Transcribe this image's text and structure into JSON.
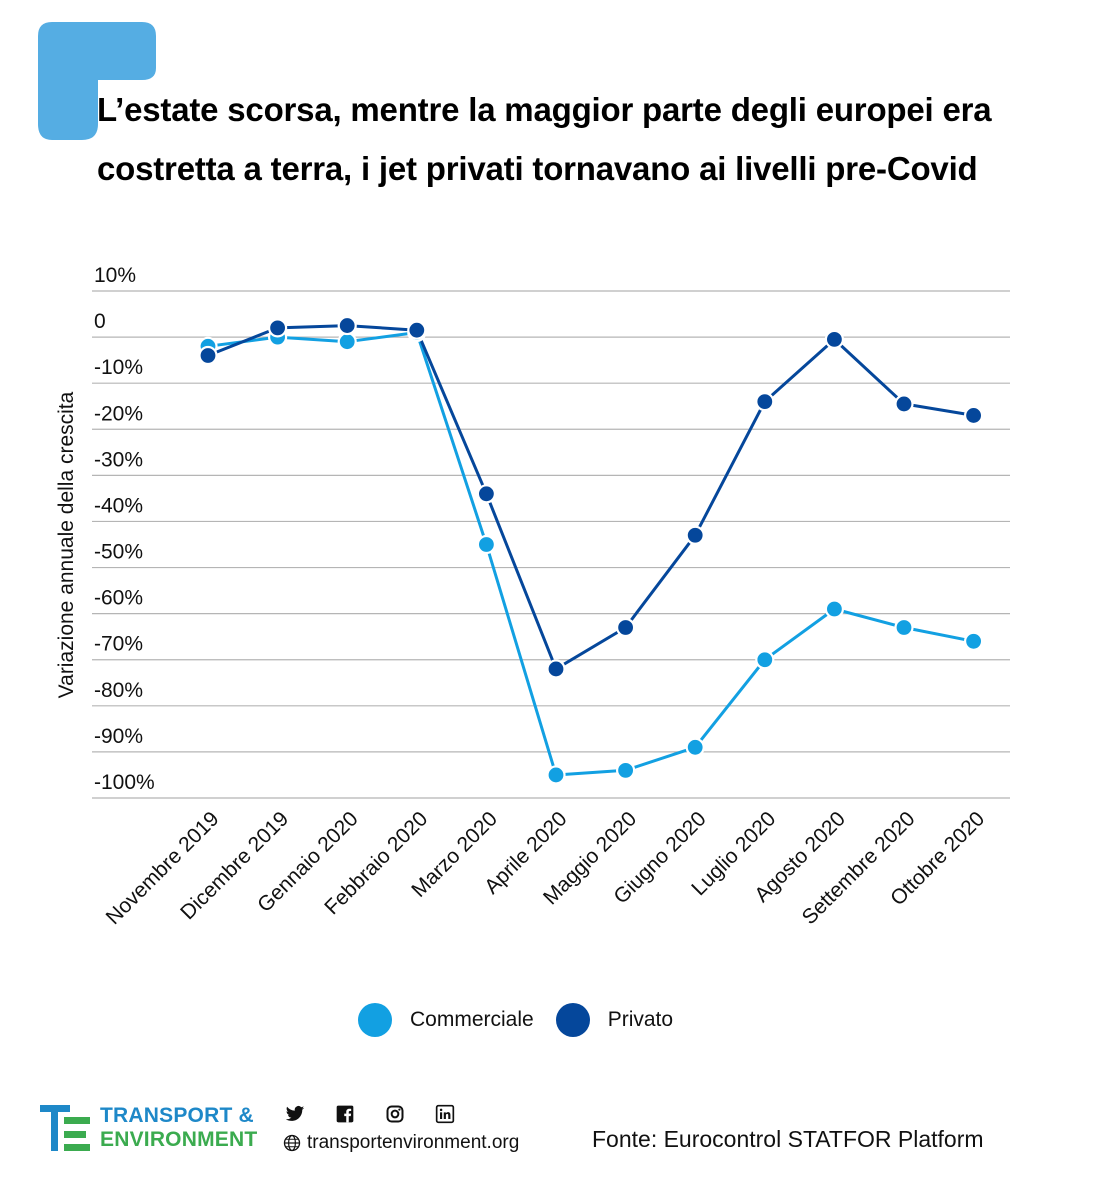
{
  "header": {
    "title": "L’estate scorsa, mentre la maggior parte degli europei era costretta a terra, i jet privati tornavano ai livelli pre-Covid"
  },
  "colors": {
    "brand_blue": "#55ade3",
    "commerciale": "#12a0e2",
    "privato": "#05479b",
    "grid": "#b5b5b5",
    "logo_blue": "#1e88c8",
    "logo_green": "#3bab4f"
  },
  "chart_data": {
    "type": "line",
    "ylabel": "Variazione annuale della crescita",
    "xlabel": "",
    "ylim": [
      -100,
      10
    ],
    "yticks": [
      10,
      0,
      -10,
      -20,
      -30,
      -40,
      -50,
      -60,
      -70,
      -80,
      -90,
      -100
    ],
    "ytick_labels": [
      "10%",
      "0",
      "-10%",
      "-20%",
      "-30%",
      "-40%",
      "-50%",
      "-60%",
      "-70%",
      "-80%",
      "-90%",
      "-100%"
    ],
    "grid": true,
    "legend_position": "bottom",
    "categories": [
      "Novembre 2019",
      "Dicembre 2019",
      "Gennaio 2020",
      "Febbraio 2020",
      "Marzo 2020",
      "Aprile 2020",
      "Maggio 2020",
      "Giugno 2020",
      "Luglio 2020",
      "Agosto 2020",
      "Settembre 2020",
      "Ottobre 2020"
    ],
    "series": [
      {
        "name": "Commerciale",
        "color": "#12a0e2",
        "values": [
          -2,
          0,
          -1,
          1,
          -45,
          -95,
          -94,
          -89,
          -70,
          -59,
          -63,
          -66
        ]
      },
      {
        "name": "Privato",
        "color": "#05479b",
        "values": [
          -4,
          2,
          2.5,
          1.5,
          -34,
          -72,
          -63,
          -43,
          -14,
          -0.5,
          -14.5,
          -17
        ]
      }
    ]
  },
  "legend": {
    "items": [
      {
        "label": "Commerciale",
        "color": "#12a0e2"
      },
      {
        "label": "Privato",
        "color": "#05479b"
      }
    ]
  },
  "footer": {
    "logo_line1": "TRANSPORT &",
    "logo_line2": "ENVIRONMENT",
    "social_icons": [
      "twitter-icon",
      "facebook-icon",
      "instagram-icon",
      "linkedin-icon"
    ],
    "website": "transportenvironment.org",
    "source": "Fonte: Eurocontrol STATFOR Platform"
  }
}
